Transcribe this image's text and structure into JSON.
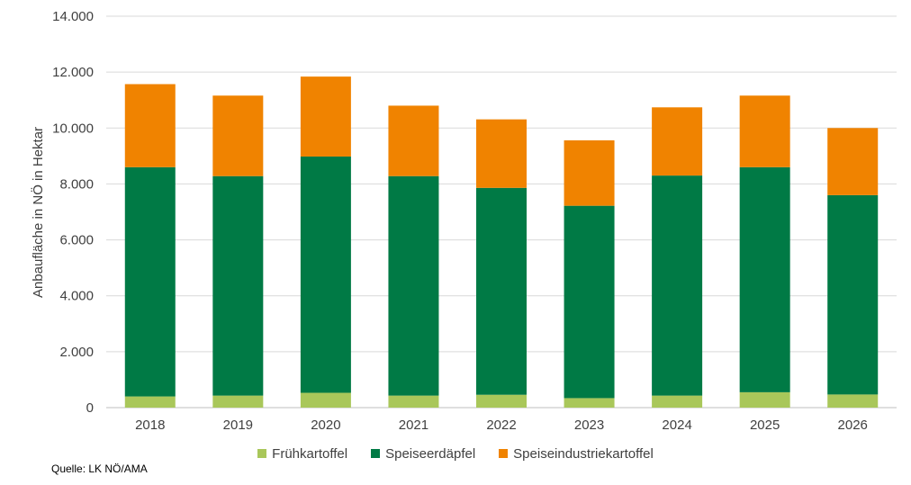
{
  "chart_data": {
    "type": "bar",
    "stacked": true,
    "categories": [
      "2018",
      "2019",
      "2020",
      "2021",
      "2022",
      "2023",
      "2024",
      "2025",
      "2026"
    ],
    "series": [
      {
        "name": "Frühkartoffel",
        "color": "#a9c75a",
        "values": [
          400,
          430,
          530,
          430,
          460,
          340,
          430,
          550,
          470
        ]
      },
      {
        "name": "Speiseerdäpfel",
        "color": "#007a45",
        "values": [
          8200,
          7850,
          8450,
          7850,
          7400,
          6880,
          7870,
          8050,
          7130
        ]
      },
      {
        "name": "Speiseindustriekartoffel",
        "color": "#f08300",
        "values": [
          2970,
          2880,
          2860,
          2520,
          2450,
          2340,
          2440,
          2560,
          2400
        ]
      }
    ],
    "ylabel": "Anbaufläche in NÖ in Hektar",
    "ylim": [
      0,
      14000
    ],
    "yticks": [
      "0",
      "2.000",
      "4.000",
      "6.000",
      "8.000",
      "10.000",
      "12.000",
      "14.000"
    ],
    "ytick_values": [
      0,
      2000,
      4000,
      6000,
      8000,
      10000,
      12000,
      14000
    ],
    "grid": true,
    "legend_position": "bottom"
  },
  "source": "Quelle: LK NÖ/AMA"
}
